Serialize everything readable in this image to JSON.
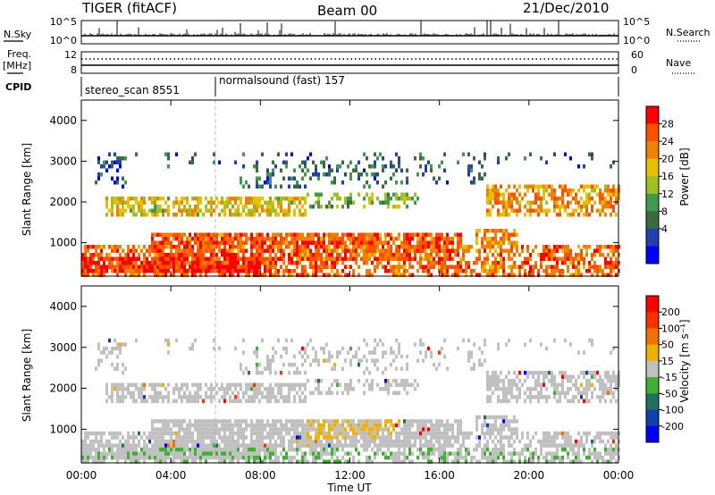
{
  "header": {
    "title": "TIGER (fitACF)",
    "beam": "Beam 00",
    "date": "21/Dec/2010"
  },
  "top_panels": {
    "nsky_label": "N.Sky",
    "nsky_ticks": [
      "10^5",
      "10^0"
    ],
    "nsearch_label": "N.Search",
    "nsearch_ticks": [
      "10^5",
      "10^0"
    ],
    "freq_label": "Freq.",
    "freq_unit": "[MHz]",
    "freq_ticks": [
      "12",
      "8"
    ],
    "nave_label": "Nave",
    "nave_ticks": [
      "60",
      "0"
    ],
    "cpid_label": "CPID",
    "cpid_segments": [
      {
        "name": "stereo_scan 8551",
        "start_hour": 0
      },
      {
        "name": "normalsound (fast) 157",
        "start_hour": 6
      }
    ]
  },
  "chart_data": [
    {
      "type": "heatmap",
      "quantity": "Power",
      "ylabel": "Slant Range [km]",
      "ylim": [
        180,
        4500
      ],
      "yticks": [
        1000,
        2000,
        3000,
        4000
      ],
      "xlim_hours": [
        0,
        24
      ],
      "colorbar_label": "Power [dB]",
      "colorbar_ticks": [
        "28",
        "24",
        "20",
        "16",
        "12",
        "8",
        "4"
      ],
      "colorbar_colors": [
        "#0000ff",
        "#2040b0",
        "#3a6a40",
        "#3f9a50",
        "#a0c020",
        "#e8c000",
        "#f08000",
        "#ff5000",
        "#ff0000"
      ],
      "colorbar_range": [
        0,
        30
      ]
    },
    {
      "type": "heatmap",
      "quantity": "Velocity",
      "ylabel": "Slant Range [km]",
      "ylim": [
        180,
        4500
      ],
      "yticks": [
        1000,
        2000,
        3000,
        4000
      ],
      "xlim_hours": [
        0,
        24
      ],
      "xlabel": "Time UT",
      "xticks": [
        "00:00",
        "04:00",
        "08:00",
        "12:00",
        "16:00",
        "20:00",
        "00:00"
      ],
      "colorbar_label": "Velocity [m s⁻¹]",
      "colorbar_ticks": [
        "200",
        "100",
        "50",
        "15",
        "-15",
        "-50",
        "-100",
        "-200"
      ],
      "colorbar_colors": [
        "#0000ff",
        "#1040b0",
        "#207060",
        "#40b030",
        "#c0c0c0",
        "#f0b000",
        "#f07000",
        "#ff3000",
        "#ff0000"
      ]
    }
  ]
}
